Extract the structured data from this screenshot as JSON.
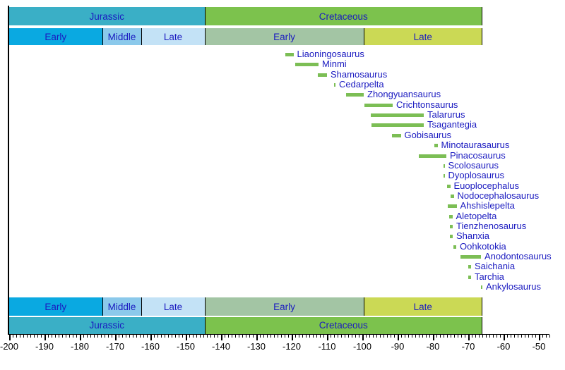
{
  "chart_data": {
    "type": "timeline",
    "title": "",
    "unit": "Ma (millions of years ago)",
    "axis": {
      "min": -200,
      "max": -47,
      "label_min": -200,
      "label_max": -50,
      "major_step": 10,
      "minor_step": 1,
      "tick_labels": [
        "-200",
        "-190",
        "-180",
        "-170",
        "-160",
        "-150",
        "-140",
        "-130",
        "-120",
        "-110",
        "-100",
        "-90",
        "-80",
        "-70",
        "-60",
        "-50"
      ]
    },
    "periods": [
      {
        "label": "Jurassic",
        "from": -200,
        "to": -144.5,
        "color": "#3aafc6"
      },
      {
        "label": "Cretaceous",
        "from": -144.5,
        "to": -66,
        "color": "#7cc24d"
      }
    ],
    "epochs": [
      {
        "label": "Early",
        "from": -200,
        "to": -173.5,
        "color": "#0aa9e1"
      },
      {
        "label": "Middle",
        "from": -173.5,
        "to": -162.5,
        "color": "#8bc9eb"
      },
      {
        "label": "Late",
        "from": -162.5,
        "to": -144.5,
        "color": "#c3e2f6"
      },
      {
        "label": "Early",
        "from": -144.5,
        "to": -99.5,
        "color": "#a3c5a4"
      },
      {
        "label": "Late",
        "from": -99.5,
        "to": -66,
        "color": "#cbd955"
      }
    ],
    "taxa": [
      {
        "name": "Liaoningosaurus",
        "from": -121.8,
        "to": -119.5
      },
      {
        "name": "Minmi",
        "from": -119.1,
        "to": -112.4
      },
      {
        "name": "Shamosaurus",
        "from": -112.7,
        "to": -110.0
      },
      {
        "name": "Cedarpelta",
        "from": -108.1,
        "to": -107.6
      },
      {
        "name": "Zhongyuansaurus",
        "from": -104.6,
        "to": -99.6
      },
      {
        "name": "Crichtonsaurus",
        "from": -99.4,
        "to": -91.4
      },
      {
        "name": "Talarurus",
        "from": -97.6,
        "to": -82.6
      },
      {
        "name": "Tsagantegia",
        "from": -97.5,
        "to": -82.6
      },
      {
        "name": "Gobisaurus",
        "from": -91.6,
        "to": -89.1
      },
      {
        "name": "Minotaurasaurus",
        "from": -79.6,
        "to": -78.7
      },
      {
        "name": "Pinacosaurus",
        "from": -84.1,
        "to": -76.2
      },
      {
        "name": "Scolosaurus",
        "from": -77.1,
        "to": -76.7
      },
      {
        "name": "Dyoplosaurus",
        "from": -77.1,
        "to": -76.7
      },
      {
        "name": "Euoplocephalus",
        "from": -76.1,
        "to": -75.1
      },
      {
        "name": "Nodocephalosaurus",
        "from": -75.1,
        "to": -74.1
      },
      {
        "name": "Ahshislepelta",
        "from": -75.8,
        "to": -73.3
      },
      {
        "name": "Aletopelta",
        "from": -75.4,
        "to": -74.5
      },
      {
        "name": "Tienzhenosaurus",
        "from": -75.3,
        "to": -74.4
      },
      {
        "name": "Shanxia",
        "from": -75.3,
        "to": -74.4
      },
      {
        "name": "Oohkotokia",
        "from": -74.3,
        "to": -73.4
      },
      {
        "name": "Anodontosaurus",
        "from": -72.3,
        "to": -66.4
      },
      {
        "name": "Saichania",
        "from": -70.1,
        "to": -69.2
      },
      {
        "name": "Tarchia",
        "from": -70.1,
        "to": -69.2
      },
      {
        "name": "Ankylosaurus",
        "from": -66.4,
        "to": -66.0
      }
    ],
    "colors": {
      "taxon_bar": "#7cbe55",
      "label_text": "#1a1ac0",
      "axis_text": "#000000",
      "divider": "#000000",
      "background": "#ffffff"
    }
  }
}
